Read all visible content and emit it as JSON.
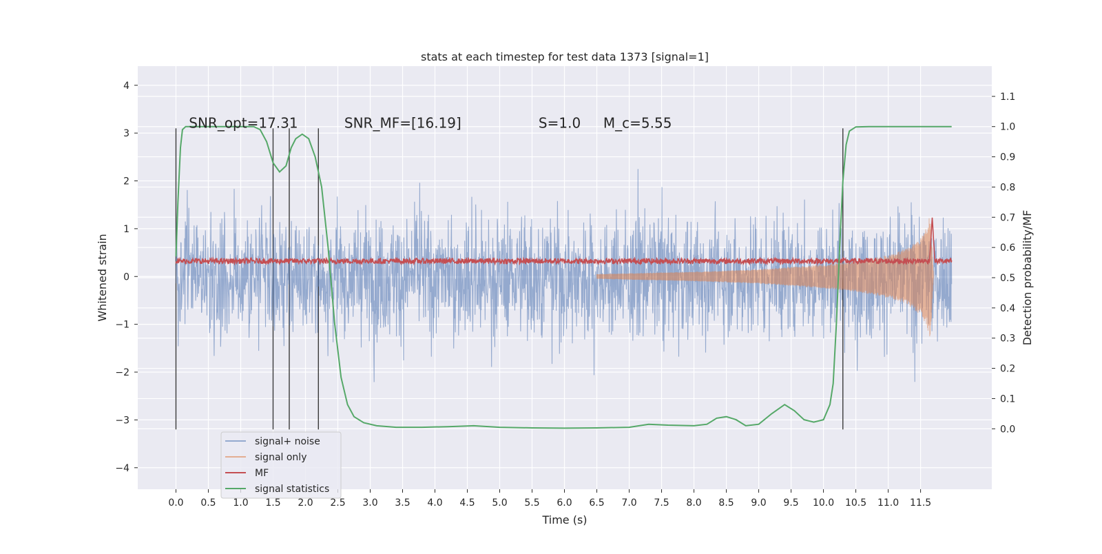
{
  "chart_data": {
    "type": "line",
    "title": "stats at each timestep for test data 1373 [signal=1]",
    "xlabel": "Time (s)",
    "ylabel_left": "Whitened strain",
    "ylabel_right": "Detection probability/MF",
    "xlim": [
      -0.59,
      12.6
    ],
    "ylim_left": [
      -4.45,
      4.4
    ],
    "ylim_right": [
      -0.2,
      1.2
    ],
    "x_ticks": [
      0.0,
      0.5,
      1.0,
      1.5,
      2.0,
      2.5,
      3.0,
      3.5,
      4.0,
      4.5,
      5.0,
      5.5,
      6.0,
      6.5,
      7.0,
      7.5,
      8.0,
      8.5,
      9.0,
      9.5,
      10.0,
      10.5,
      11.0,
      11.5
    ],
    "x_tick_labels": [
      "0.0",
      "0.5",
      "1.0",
      "1.5",
      "2.0",
      "2.5",
      "3.0",
      "3.5",
      "4.0",
      "4.5",
      "5.0",
      "5.5",
      "6.0",
      "6.5",
      "7.0",
      "7.5",
      "8.0",
      "8.5",
      "9.0",
      "9.5",
      "10.0",
      "10.5",
      "11.0",
      "11.5"
    ],
    "y_left_ticks": [
      -4,
      -3,
      -2,
      -1,
      0,
      1,
      2,
      3,
      4
    ],
    "y_left_tick_labels": [
      "−4",
      "−3",
      "−2",
      "−1",
      "0",
      "1",
      "2",
      "3",
      "4"
    ],
    "y_right_ticks": [
      0.0,
      0.1,
      0.2,
      0.3,
      0.4,
      0.5,
      0.6,
      0.7,
      0.8,
      0.9,
      1.0,
      1.1
    ],
    "y_right_tick_labels": [
      "0.0",
      "0.1",
      "0.2",
      "0.3",
      "0.4",
      "0.5",
      "0.6",
      "0.7",
      "0.8",
      "0.9",
      "1.0",
      "1.1"
    ],
    "grid": true,
    "legend_position": "lower-left",
    "annotations": [
      {
        "text": "SNR_opt=17.31",
        "x": 0.2,
        "y": 3.2
      },
      {
        "text": "SNR_MF=[16.19]",
        "x": 2.6,
        "y": 3.2
      },
      {
        "text": "S=1.0",
        "x": 5.6,
        "y": 3.2
      },
      {
        "text": "M_c=5.55",
        "x": 6.6,
        "y": 3.2
      }
    ],
    "vertical_markers": [
      0.0,
      1.5,
      1.75,
      2.2,
      10.3
    ],
    "series": [
      {
        "name": "signal+ noise",
        "color": "#4c72b0",
        "axis": "left",
        "style": "noise",
        "x_range": [
          0.0,
          11.98
        ],
        "amplitude_sd": 1.0
      },
      {
        "name": "signal only",
        "color": "#dd8452",
        "axis": "left",
        "style": "chirp",
        "x_range": [
          6.5,
          11.7
        ],
        "envelope": {
          "x": [
            6.5,
            8.0,
            9.0,
            10.0,
            10.5,
            11.0,
            11.3,
            11.5,
            11.6,
            11.65,
            11.7
          ],
          "y": [
            0.05,
            0.1,
            0.15,
            0.25,
            0.32,
            0.45,
            0.6,
            0.8,
            1.05,
            1.35,
            0.05
          ]
        }
      },
      {
        "name": "MF",
        "color": "#c44e52",
        "axis": "right",
        "style": "mf",
        "x_range": [
          0.0,
          11.98
        ],
        "baseline": 0.555,
        "peak": {
          "x": 11.68,
          "y": 0.7
        }
      },
      {
        "name": "signal statistics",
        "color": "#55a868",
        "axis": "right",
        "style": "line",
        "x": [
          0.0,
          0.03,
          0.07,
          0.1,
          0.15,
          0.3,
          0.6,
          1.0,
          1.2,
          1.3,
          1.4,
          1.5,
          1.6,
          1.7,
          1.78,
          1.85,
          1.95,
          2.05,
          2.15,
          2.25,
          2.35,
          2.45,
          2.55,
          2.65,
          2.75,
          2.9,
          3.1,
          3.4,
          3.8,
          4.2,
          4.6,
          5.0,
          5.5,
          6.0,
          6.5,
          7.0,
          7.3,
          7.6,
          8.0,
          8.2,
          8.35,
          8.5,
          8.65,
          8.8,
          9.0,
          9.2,
          9.4,
          9.55,
          9.7,
          9.85,
          10.0,
          10.1,
          10.15,
          10.2,
          10.25,
          10.3,
          10.35,
          10.4,
          10.5,
          10.7,
          11.0,
          11.5,
          11.98
        ],
        "y": [
          0.57,
          0.75,
          0.93,
          0.99,
          1.0,
          1.0,
          1.0,
          1.0,
          1.0,
          0.99,
          0.95,
          0.88,
          0.85,
          0.87,
          0.93,
          0.96,
          0.975,
          0.96,
          0.9,
          0.8,
          0.6,
          0.35,
          0.17,
          0.08,
          0.04,
          0.02,
          0.01,
          0.005,
          0.005,
          0.007,
          0.01,
          0.005,
          0.003,
          0.002,
          0.003,
          0.005,
          0.015,
          0.012,
          0.01,
          0.015,
          0.035,
          0.04,
          0.03,
          0.01,
          0.015,
          0.05,
          0.08,
          0.06,
          0.03,
          0.022,
          0.03,
          0.08,
          0.15,
          0.35,
          0.6,
          0.82,
          0.94,
          0.985,
          0.999,
          1.0,
          1.0,
          1.0,
          1.0
        ]
      }
    ]
  }
}
